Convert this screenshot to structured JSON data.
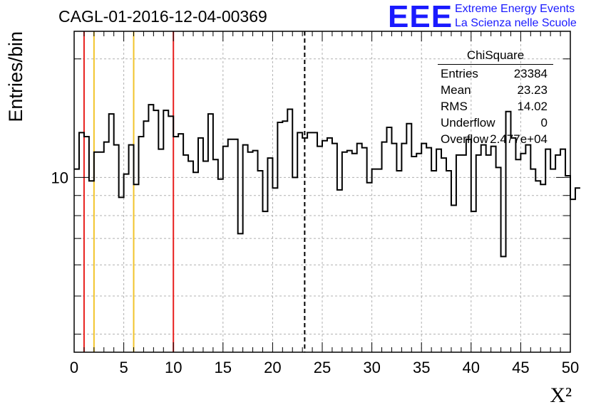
{
  "chart_data": {
    "type": "histogram",
    "title": "CAGL-01-2016-12-04-00369",
    "xlabel": "X²",
    "ylabel": "Entries/bin",
    "xlim": [
      0,
      50
    ],
    "ylim": [
      3.6,
      23.5
    ],
    "yscale": "log",
    "bin_width": 0.5,
    "x_ticks": [
      "0",
      "5",
      "10",
      "15",
      "20",
      "25",
      "30",
      "35",
      "40",
      "45",
      "50"
    ],
    "y_tick_labels": [
      {
        "value": 10,
        "label": "10"
      }
    ],
    "grid": true,
    "line_color": "#000000",
    "values": [
      10.5,
      13.0,
      12.7,
      9.8,
      11.6,
      11.6,
      12.3,
      14.5,
      12.1,
      8.9,
      10.2,
      12.1,
      9.6,
      12.7,
      13.9,
      15.3,
      14.8,
      11.8,
      14.8,
      14.3,
      12.7,
      12.9,
      11.4,
      11.0,
      10.3,
      12.6,
      11.0,
      14.5,
      11.1,
      9.9,
      12.0,
      12.5,
      12.5,
      7.2,
      12.1,
      11.6,
      11.7,
      10.4,
      8.2,
      11.2,
      9.4,
      13.8,
      13.9,
      14.9,
      10.0,
      13.0,
      12.6,
      13.0,
      13.0,
      12.0,
      12.4,
      12.6,
      12.2,
      9.3,
      11.6,
      11.7,
      11.5,
      12.2,
      11.9,
      9.7,
      10.5,
      10.5,
      12.3,
      13.4,
      12.2,
      10.4,
      12.2,
      13.7,
      11.3,
      11.5,
      12.2,
      11.9,
      10.4,
      11.8,
      11.2,
      10.4,
      8.5,
      11.4,
      11.4,
      12.5,
      8.2,
      11.4,
      12.1,
      11.4,
      12.0,
      10.6,
      6.3,
      14.7,
      12.6,
      11.1,
      11.5,
      12.1,
      10.5,
      9.8,
      9.6,
      11.8,
      10.5,
      11.4,
      11.8,
      10.1,
      8.8,
      9.4
    ],
    "vertical_lines": [
      {
        "x": 1.0,
        "color": "#e8201e",
        "style": "solid"
      },
      {
        "x": 2.0,
        "color": "#f2c42a",
        "style": "solid"
      },
      {
        "x": 6.0,
        "color": "#f2c42a",
        "style": "solid"
      },
      {
        "x": 10.0,
        "color": "#e8201e",
        "style": "solid"
      },
      {
        "x": 23.23,
        "color": "#000000",
        "style": "dashed"
      }
    ]
  },
  "stats": {
    "title": "ChiSquare",
    "rows": [
      {
        "label": "Entries",
        "value": "23384"
      },
      {
        "label": "Mean",
        "value": "23.23"
      },
      {
        "label": "RMS",
        "value": "14.02"
      },
      {
        "label": "Underflow",
        "value": "0"
      },
      {
        "label": "Overflow",
        "value": "2.477e+04"
      }
    ]
  },
  "logo": {
    "mark": "EEE",
    "line1": "Extreme Energy Events",
    "line2": "La Scienza nelle Scuole",
    "color": "#1a1aff"
  }
}
